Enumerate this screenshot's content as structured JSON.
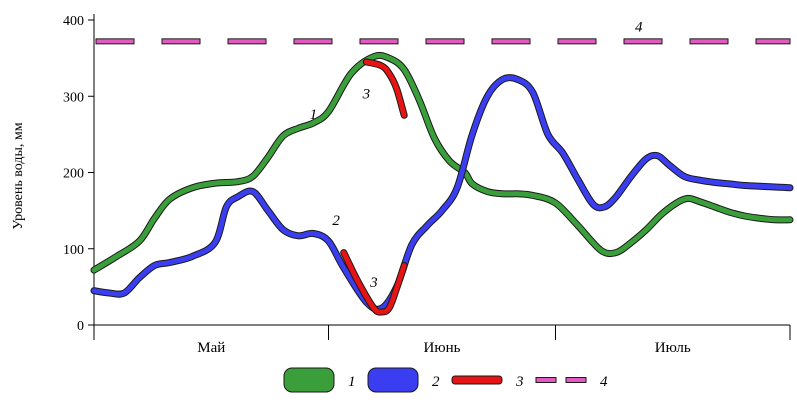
{
  "chart_data": {
    "type": "line",
    "title": "",
    "xlabel": "",
    "ylabel": "Уровень воды, мм",
    "ylim": [
      0,
      400
    ],
    "yticks": [
      0,
      100,
      200,
      300,
      400
    ],
    "xlim": [
      0,
      92
    ],
    "months": [
      {
        "name": "Май",
        "start": 0,
        "end": 31
      },
      {
        "name": "Июнь",
        "start": 31,
        "end": 61
      },
      {
        "name": "Июль",
        "start": 61,
        "end": 92
      }
    ],
    "series": [
      {
        "name": "1",
        "color": "#3a9e3a",
        "label_at": [
          29,
          270
        ],
        "x": [
          0,
          3,
          6,
          8,
          10,
          13,
          16,
          19,
          21,
          23,
          25,
          27,
          29,
          31,
          34,
          37,
          39,
          41,
          43,
          45,
          47,
          49,
          50,
          52,
          54,
          56,
          58,
          61,
          64,
          67,
          69,
          71,
          73,
          75,
          77,
          78.5,
          80,
          82,
          84,
          86,
          88,
          90,
          92
        ],
        "values": [
          72,
          90,
          110,
          140,
          165,
          180,
          186,
          188,
          195,
          220,
          248,
          258,
          265,
          280,
          330,
          352,
          350,
          335,
          295,
          245,
          215,
          200,
          185,
          175,
          172,
          172,
          170,
          160,
          130,
          98,
          95,
          108,
          125,
          145,
          160,
          166,
          162,
          155,
          148,
          143,
          140,
          138,
          138
        ]
      },
      {
        "name": "2",
        "color": "#3a3ef0",
        "label_at": [
          32,
          131
        ],
        "x": [
          0,
          2,
          4,
          6,
          8,
          10,
          13,
          16,
          17.5,
          19,
          21,
          23,
          25,
          27,
          29,
          31,
          33,
          36,
          38,
          40,
          42,
          44,
          46,
          48,
          50,
          52,
          54,
          56,
          58,
          60,
          62,
          64,
          66,
          67.5,
          69,
          71,
          73,
          74.5,
          76,
          78,
          80,
          82,
          84,
          86,
          88,
          90,
          92
        ],
        "values": [
          45,
          42,
          42,
          62,
          78,
          82,
          90,
          108,
          155,
          168,
          175,
          150,
          125,
          117,
          120,
          110,
          75,
          30,
          22,
          50,
          105,
          130,
          150,
          180,
          250,
          300,
          322,
          322,
          305,
          250,
          225,
          190,
          158,
          155,
          168,
          195,
          218,
          222,
          210,
          195,
          190,
          187,
          185,
          183,
          182,
          181,
          180
        ]
      },
      {
        "name": "3",
        "color": "#e61414",
        "labels_at": [
          [
            36,
            297
          ],
          [
            37,
            50
          ]
        ],
        "segments": [
          {
            "x": [
              36,
              38,
              39,
              40,
              41
            ],
            "values": [
              345,
              340,
              330,
              310,
              275
            ]
          },
          {
            "x": [
              33,
              35,
              37,
              38,
              39,
              40,
              41
            ],
            "values": [
              95,
              55,
              22,
              17,
              22,
              48,
              78
            ]
          }
        ]
      },
      {
        "name": "4",
        "color": "#e05ac0",
        "label_at": [
          72,
          385
        ],
        "values": [
          372
        ]
      }
    ],
    "legend": {
      "position": "bottom",
      "items": [
        {
          "label": "1",
          "color": "#3a9e3a",
          "style": "solid"
        },
        {
          "label": "2",
          "color": "#3a3ef0",
          "style": "solid"
        },
        {
          "label": "3",
          "color": "#e61414",
          "style": "solid"
        },
        {
          "label": "4",
          "color": "#e05ac0",
          "style": "dashed"
        }
      ]
    },
    "grid": false
  }
}
